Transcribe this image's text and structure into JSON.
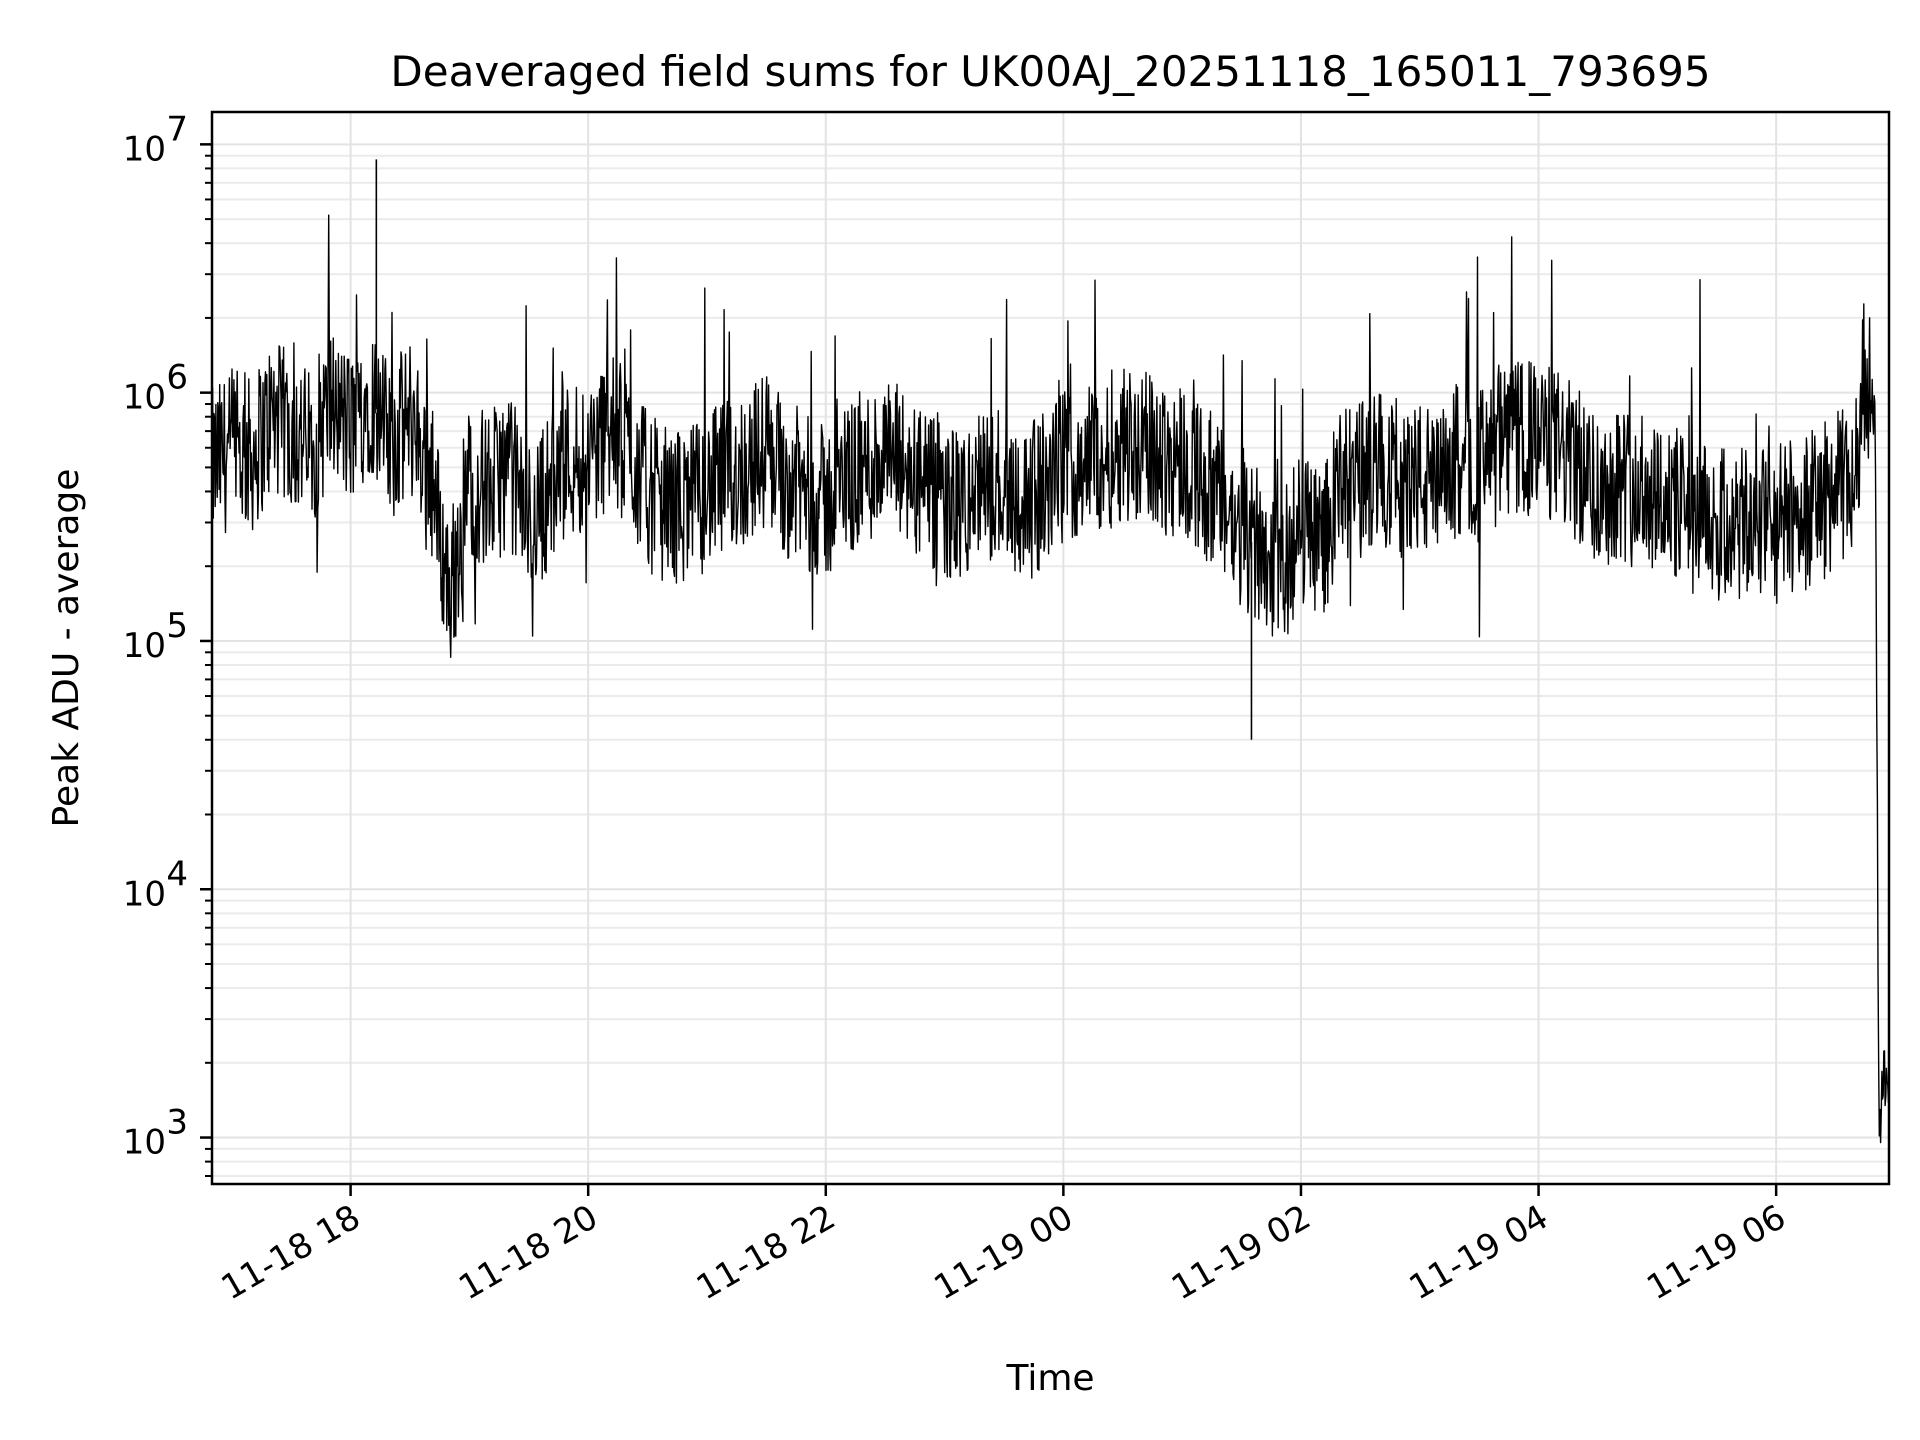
{
  "chart_data": {
    "type": "line",
    "title": "Deaveraged field sums for UK00AJ_20251118_165011_793695",
    "xlabel": "Time",
    "ylabel": "Peak ADU - average",
    "yscale": "log",
    "xlim": [
      "2025-11-18 16:50",
      "2025-11-19 06:57"
    ],
    "ylim": [
      650,
      13500000
    ],
    "grid": true,
    "line_color": "#000000",
    "x_ticks": [
      {
        "value": "2025-11-18 18:00",
        "label": "11-18 18"
      },
      {
        "value": "2025-11-18 20:00",
        "label": "11-18 20"
      },
      {
        "value": "2025-11-18 22:00",
        "label": "11-18 22"
      },
      {
        "value": "2025-11-19 00:00",
        "label": "11-19 00"
      },
      {
        "value": "2025-11-19 02:00",
        "label": "11-19 02"
      },
      {
        "value": "2025-11-19 04:00",
        "label": "11-19 04"
      },
      {
        "value": "2025-11-19 06:00",
        "label": "11-19 06"
      }
    ],
    "y_ticks": [
      {
        "value": 1000,
        "base": "10",
        "exp": "3"
      },
      {
        "value": 10000,
        "base": "10",
        "exp": "4"
      },
      {
        "value": 100000,
        "base": "10",
        "exp": "5"
      },
      {
        "value": 1000000,
        "base": "10",
        "exp": "6"
      },
      {
        "value": 10000000,
        "base": "10",
        "exp": "7"
      }
    ],
    "series": [
      {
        "x": [
          "2025-11-18 16:50",
          "2025-11-18 17:00",
          "2025-11-18 17:10",
          "2025-11-18 17:20",
          "2025-11-18 17:30",
          "2025-11-18 17:40",
          "2025-11-18 17:50",
          "2025-11-18 18:00",
          "2025-11-18 18:10",
          "2025-11-18 18:20",
          "2025-11-18 18:30",
          "2025-11-18 18:40",
          "2025-11-18 18:50",
          "2025-11-18 19:00",
          "2025-11-18 19:10",
          "2025-11-18 19:20",
          "2025-11-18 19:30",
          "2025-11-18 19:40",
          "2025-11-18 19:50",
          "2025-11-18 20:00",
          "2025-11-18 20:10",
          "2025-11-18 20:20",
          "2025-11-18 20:30",
          "2025-11-18 20:40",
          "2025-11-18 20:50",
          "2025-11-18 21:00",
          "2025-11-18 21:10",
          "2025-11-18 21:20",
          "2025-11-18 21:30",
          "2025-11-18 21:40",
          "2025-11-18 21:50",
          "2025-11-18 22:00",
          "2025-11-18 22:10",
          "2025-11-18 22:20",
          "2025-11-18 22:30",
          "2025-11-18 22:40",
          "2025-11-18 22:50",
          "2025-11-18 23:00",
          "2025-11-18 23:10",
          "2025-11-18 23:20",
          "2025-11-18 23:30",
          "2025-11-18 23:40",
          "2025-11-18 23:50",
          "2025-11-19 00:00",
          "2025-11-19 00:10",
          "2025-11-19 00:20",
          "2025-11-19 00:30",
          "2025-11-19 00:40",
          "2025-11-19 00:50",
          "2025-11-19 01:00",
          "2025-11-19 01:10",
          "2025-11-19 01:20",
          "2025-11-19 01:30",
          "2025-11-19 01:40",
          "2025-11-19 01:50",
          "2025-11-19 02:00",
          "2025-11-19 02:10",
          "2025-11-19 02:20",
          "2025-11-19 02:30",
          "2025-11-19 02:40",
          "2025-11-19 02:50",
          "2025-11-19 03:00",
          "2025-11-19 03:10",
          "2025-11-19 03:20",
          "2025-11-19 03:30",
          "2025-11-19 03:40",
          "2025-11-19 03:50",
          "2025-11-19 04:00",
          "2025-11-19 04:10",
          "2025-11-19 04:20",
          "2025-11-19 04:30",
          "2025-11-19 04:40",
          "2025-11-19 04:50",
          "2025-11-19 05:00",
          "2025-11-19 05:10",
          "2025-11-19 05:20",
          "2025-11-19 05:30",
          "2025-11-19 05:40",
          "2025-11-19 05:50",
          "2025-11-19 06:00",
          "2025-11-19 06:10",
          "2025-11-19 06:20",
          "2025-11-19 06:30",
          "2025-11-19 06:40",
          "2025-11-19 06:42",
          "2025-11-19 06:45",
          "2025-11-19 06:48",
          "2025-11-19 06:50",
          "2025-11-19 06:52",
          "2025-11-19 06:54",
          "2025-11-19 06:56"
        ],
        "values": [
          500000,
          600000,
          550000,
          800000,
          700000,
          600000,
          900000,
          700000,
          1000000,
          600000,
          800000,
          500000,
          150000,
          450000,
          400000,
          500000,
          300000,
          400000,
          550000,
          550000,
          700000,
          600000,
          400000,
          350000,
          350000,
          400000,
          450000,
          500000,
          600000,
          450000,
          400000,
          350000,
          450000,
          500000,
          550000,
          500000,
          400000,
          350000,
          350000,
          400000,
          450000,
          350000,
          400000,
          500000,
          550000,
          550000,
          650000,
          600000,
          550000,
          550000,
          450000,
          350000,
          250000,
          250000,
          180000,
          300000,
          250000,
          400000,
          450000,
          500000,
          450000,
          450000,
          400000,
          550000,
          500000,
          600000,
          650000,
          650000,
          600000,
          500000,
          400000,
          450000,
          400000,
          400000,
          350000,
          300000,
          300000,
          280000,
          300000,
          300000,
          320000,
          350000,
          400000,
          450000,
          700000,
          1300000,
          1000000,
          800000,
          1000,
          1800,
          1600
        ]
      }
    ],
    "annotations": {
      "min_spike": {
        "x": "2025-11-19 01:35",
        "value": 40000
      },
      "max_spike": {
        "x": "2025-11-18 18:13",
        "value": 8700000
      }
    }
  }
}
